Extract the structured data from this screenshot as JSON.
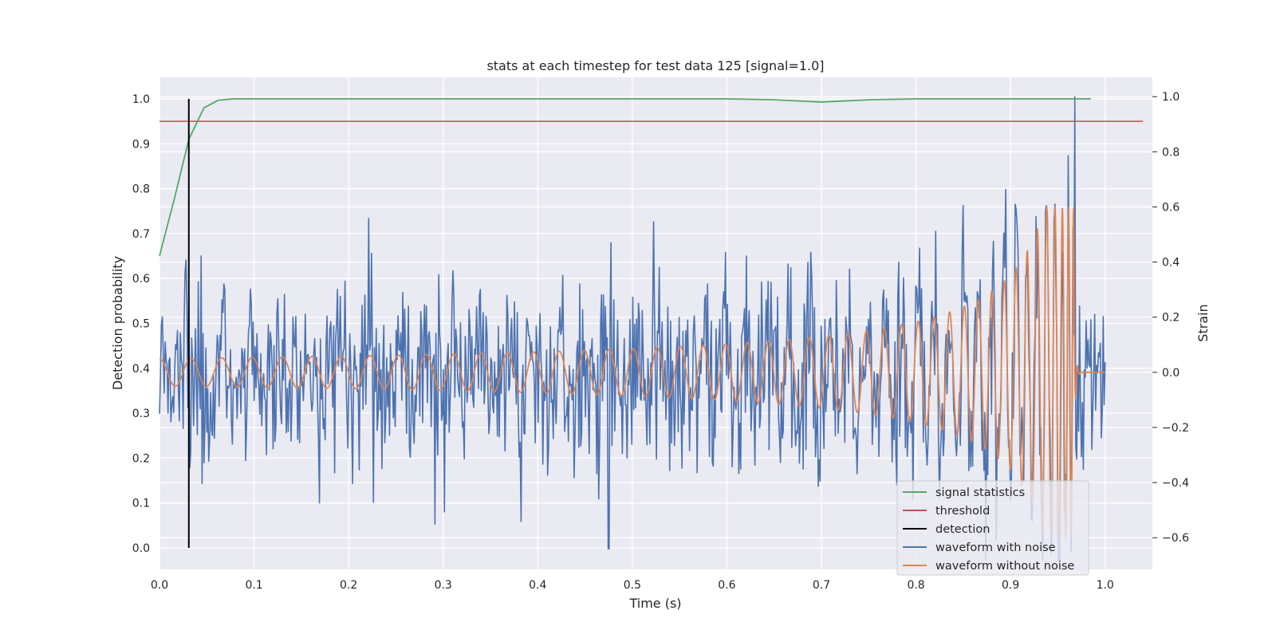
{
  "chart_data": {
    "type": "line",
    "title": "stats at each timestep for test data 125 [signal=1.0]",
    "xlabel": "Time (s)",
    "ylabel_left": "Detection probability",
    "ylabel_right": "Strain",
    "xlim": [
      0.0,
      1.05
    ],
    "ylim_left": [
      -0.048,
      1.048
    ],
    "ylim_right": [
      -0.715,
      1.07
    ],
    "x_ticks": [
      "0.0",
      "0.1",
      "0.2",
      "0.3",
      "0.4",
      "0.5",
      "0.6",
      "0.7",
      "0.8",
      "0.9",
      "1.0"
    ],
    "y_ticks_left": [
      "0.0",
      "0.1",
      "0.2",
      "0.3",
      "0.4",
      "0.5",
      "0.6",
      "0.7",
      "0.8",
      "0.9",
      "1.0"
    ],
    "y_ticks_right": [
      "−0.6",
      "−0.4",
      "−0.2",
      "0.0",
      "0.2",
      "0.4",
      "0.6",
      "0.8",
      "1.0"
    ],
    "grid": true,
    "legend_position": "lower-right",
    "series": [
      {
        "name": "signal statistics",
        "axis": "left",
        "color": "#55a868",
        "x": [
          0.0,
          0.016,
          0.031,
          0.047,
          0.062,
          0.078,
          0.1,
          0.2,
          0.3,
          0.4,
          0.5,
          0.6,
          0.65,
          0.7,
          0.75,
          0.8,
          0.9,
          0.985
        ],
        "y": [
          0.65,
          0.78,
          0.91,
          0.98,
          0.997,
          1.0,
          1.0,
          1.0,
          1.0,
          1.0,
          1.0,
          1.0,
          0.998,
          0.993,
          0.998,
          1.0,
          1.0,
          1.0
        ]
      },
      {
        "name": "threshold",
        "axis": "left",
        "color": "#c44e52",
        "x": [
          0.0,
          1.04
        ],
        "y": [
          0.95,
          0.95
        ]
      },
      {
        "name": "detection",
        "axis": "left",
        "color": "#000000",
        "x": [
          0.031,
          0.031
        ],
        "y": [
          0.0,
          1.0
        ]
      },
      {
        "name": "waveform with noise",
        "axis": "right",
        "color": "#4c72b0",
        "points": 1000,
        "x_range": [
          0.0,
          1.0
        ],
        "std": 0.17,
        "peak": {
          "x": 0.968,
          "y": 1.0
        },
        "min": {
          "x": 0.475,
          "y": -0.64
        }
      },
      {
        "name": "waveform without noise",
        "axis": "right",
        "color": "#dd8452",
        "x_range": [
          0.0,
          1.0
        ],
        "start_frequency_hz": 30,
        "start_amplitude": 0.05,
        "merger_time": 0.967,
        "peak_amplitude": 0.6
      }
    ]
  }
}
